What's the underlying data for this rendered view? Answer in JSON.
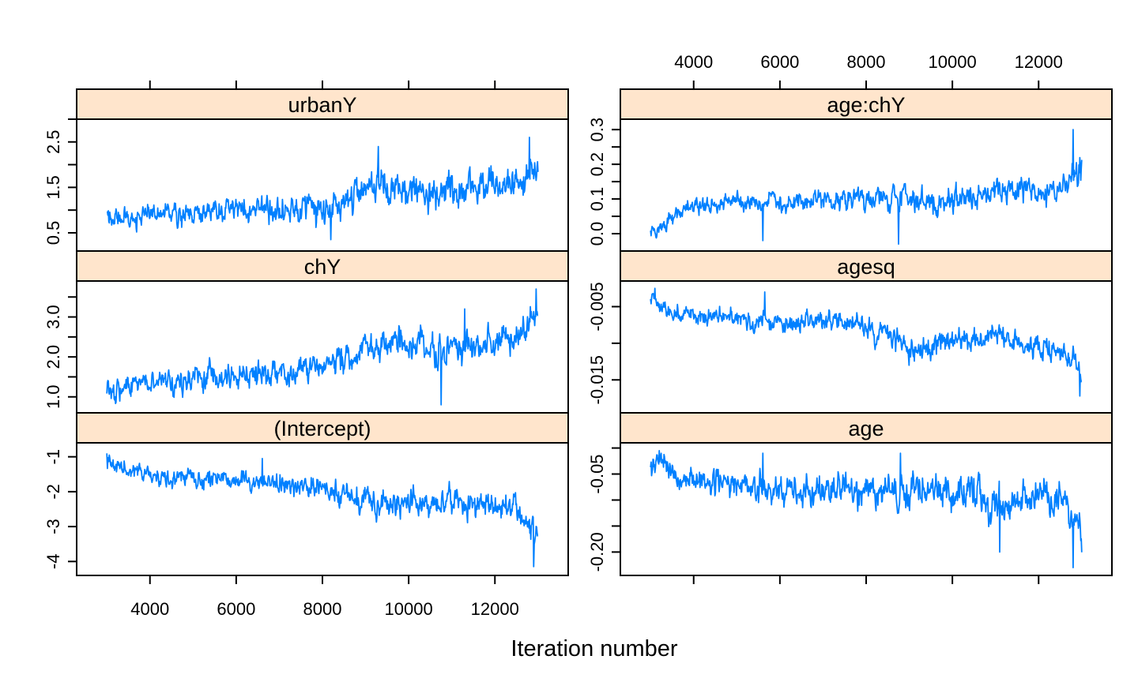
{
  "chart_data": {
    "type": "line",
    "xlabel": "Iteration number",
    "x_range": [
      3001,
      13000
    ],
    "xlim": [
      2300,
      13700
    ],
    "x_ticks": [
      4000,
      6000,
      8000,
      10000,
      12000
    ],
    "x_tick_labels": [
      "4000",
      "6000",
      "8000",
      "10000",
      "12000"
    ],
    "line_color": "#0080ff",
    "strip_color": "#ffe5cc",
    "layout": "2 columns x 3 rows",
    "panels": [
      {
        "name": "urbanY",
        "column": 0,
        "row": 0,
        "ylim": [
          0.1,
          3.0
        ],
        "y_ticks": [
          0.5,
          1.0,
          1.5,
          2.0,
          2.5,
          3.0
        ],
        "y_tick_labels": [
          "0.5",
          "1.5",
          "2.5"
        ],
        "trend": [
          [
            3000,
            0.8
          ],
          [
            5000,
            0.95
          ],
          [
            7000,
            1.05
          ],
          [
            8000,
            0.95
          ],
          [
            9000,
            1.5
          ],
          [
            11000,
            1.4
          ],
          [
            12600,
            1.6
          ],
          [
            13000,
            1.9
          ]
        ],
        "noise": 0.28,
        "spikes": [
          [
            12800,
            2.6
          ],
          [
            9300,
            2.4
          ],
          [
            8200,
            0.35
          ]
        ],
        "vol": [
          [
            3000,
            0.7
          ],
          [
            6000,
            0.8
          ],
          [
            8500,
            1.1
          ],
          [
            11000,
            1.0
          ],
          [
            12500,
            1.2
          ],
          [
            13000,
            1.2
          ]
        ]
      },
      {
        "name": "chY",
        "column": 0,
        "row": 1,
        "ylim": [
          0.6,
          3.9
        ],
        "y_ticks": [
          1.0,
          1.5,
          2.0,
          2.5,
          3.0,
          3.5
        ],
        "y_tick_labels": [
          "1.0",
          "2.0",
          "3.0"
        ],
        "trend": [
          [
            3000,
            1.0
          ],
          [
            3500,
            1.25
          ],
          [
            5000,
            1.5
          ],
          [
            7000,
            1.6
          ],
          [
            8500,
            1.9
          ],
          [
            9500,
            2.4
          ],
          [
            10500,
            2.2
          ],
          [
            11500,
            2.3
          ],
          [
            12500,
            2.5
          ],
          [
            13000,
            3.1
          ]
        ],
        "noise": 0.28,
        "spikes": [
          [
            12950,
            3.7
          ],
          [
            10750,
            0.8
          ],
          [
            11300,
            3.2
          ]
        ],
        "vol": [
          [
            3000,
            0.8
          ],
          [
            6000,
            1.0
          ],
          [
            9000,
            1.1
          ],
          [
            11000,
            1.2
          ],
          [
            13000,
            1.0
          ]
        ]
      },
      {
        "name": "(Intercept)",
        "column": 0,
        "row": 2,
        "ylim": [
          -4.4,
          -0.6
        ],
        "y_ticks": [
          -4,
          -3,
          -2,
          -1
        ],
        "y_tick_labels": [
          "-4",
          "-3",
          "-2",
          "-1"
        ],
        "trend": [
          [
            3000,
            -1.2
          ],
          [
            4000,
            -1.5
          ],
          [
            6000,
            -1.7
          ],
          [
            8000,
            -1.9
          ],
          [
            9000,
            -2.3
          ],
          [
            11000,
            -2.3
          ],
          [
            12500,
            -2.4
          ],
          [
            13000,
            -3.4
          ]
        ],
        "noise": 0.28,
        "spikes": [
          [
            12900,
            -4.15
          ],
          [
            6600,
            -1.05
          ],
          [
            3000,
            -0.9
          ]
        ],
        "vol": [
          [
            3000,
            0.7
          ],
          [
            6000,
            0.8
          ],
          [
            9000,
            1.2
          ],
          [
            11000,
            1.1
          ],
          [
            13000,
            1.3
          ]
        ]
      },
      {
        "name": "age:chY",
        "column": 1,
        "row": 0,
        "ylim": [
          -0.05,
          0.33
        ],
        "y_ticks": [
          0.0,
          0.05,
          0.1,
          0.15,
          0.2,
          0.25,
          0.3
        ],
        "y_tick_labels": [
          "0.0",
          "0.1",
          "0.2",
          "0.3"
        ],
        "trend": [
          [
            3000,
            0.0
          ],
          [
            3300,
            0.02
          ],
          [
            3800,
            0.08
          ],
          [
            6000,
            0.09
          ],
          [
            8000,
            0.1
          ],
          [
            10000,
            0.1
          ],
          [
            11000,
            0.12
          ],
          [
            12500,
            0.13
          ],
          [
            13000,
            0.2
          ]
        ],
        "noise": 0.03,
        "spikes": [
          [
            12800,
            0.3
          ],
          [
            8750,
            -0.03
          ],
          [
            5600,
            -0.02
          ]
        ],
        "vol": [
          [
            3000,
            0.6
          ],
          [
            6000,
            0.8
          ],
          [
            9000,
            1.0
          ],
          [
            11000,
            1.0
          ],
          [
            13000,
            1.2
          ]
        ]
      },
      {
        "name": "agesq",
        "column": 1,
        "row": 1,
        "ylim": [
          -0.0195,
          -0.0015
        ],
        "y_ticks": [
          -0.015,
          -0.01,
          -0.005
        ],
        "y_tick_labels": [
          "-0.015",
          "-0.005"
        ],
        "trend": [
          [
            3000,
            -0.004
          ],
          [
            3500,
            -0.006
          ],
          [
            6000,
            -0.007
          ],
          [
            8000,
            -0.0075
          ],
          [
            9000,
            -0.0105
          ],
          [
            11000,
            -0.009
          ],
          [
            12000,
            -0.011
          ],
          [
            12800,
            -0.0115
          ],
          [
            13000,
            -0.0145
          ]
        ],
        "noise": 0.0013,
        "spikes": [
          [
            3100,
            -0.0025
          ],
          [
            5650,
            -0.003
          ],
          [
            12950,
            -0.0172
          ],
          [
            9000,
            -0.013
          ]
        ],
        "vol": [
          [
            3000,
            0.7
          ],
          [
            6000,
            0.8
          ],
          [
            9000,
            1.1
          ],
          [
            11000,
            1.0
          ],
          [
            13000,
            1.2
          ]
        ]
      },
      {
        "name": "age",
        "column": 1,
        "row": 2,
        "ylim": [
          -0.245,
          0.01
        ],
        "y_ticks": [
          -0.2,
          -0.15,
          -0.1,
          -0.05,
          0.0
        ],
        "y_tick_labels": [
          "-0.20",
          "-0.05"
        ],
        "trend": [
          [
            3000,
            -0.03
          ],
          [
            3300,
            -0.02
          ],
          [
            3600,
            -0.06
          ],
          [
            6000,
            -0.08
          ],
          [
            8000,
            -0.08
          ],
          [
            10000,
            -0.08
          ],
          [
            11000,
            -0.1
          ],
          [
            12500,
            -0.1
          ],
          [
            13000,
            -0.17
          ]
        ],
        "noise": 0.025,
        "spikes": [
          [
            12800,
            -0.23
          ],
          [
            11100,
            -0.2
          ],
          [
            5600,
            -0.01
          ],
          [
            3200,
            -0.005
          ],
          [
            8800,
            -0.01
          ]
        ],
        "vol": [
          [
            3000,
            0.7
          ],
          [
            6000,
            0.9
          ],
          [
            9000,
            1.1
          ],
          [
            11000,
            1.2
          ],
          [
            13000,
            1.3
          ]
        ]
      }
    ]
  }
}
